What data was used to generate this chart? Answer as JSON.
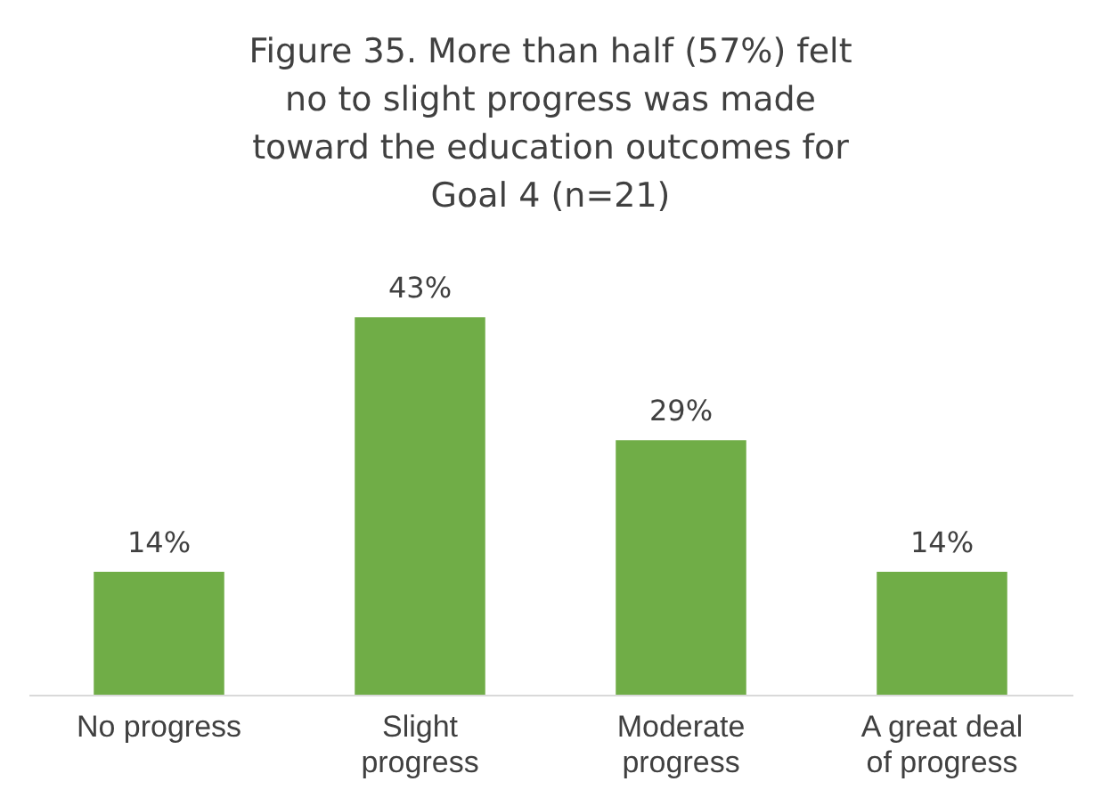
{
  "chart_data": {
    "type": "bar",
    "title": "Figure 35. More than half (57%) felt no to slight progress was made toward the education outcomes for Goal 4 (n=21)",
    "categories": [
      "No progress",
      "Slight progress",
      "Moderate progress",
      "A great deal of progress"
    ],
    "values": [
      14,
      43,
      29,
      14
    ],
    "value_labels": [
      "14%",
      "43%",
      "29%",
      "14%"
    ],
    "color": "#70ad47"
  }
}
